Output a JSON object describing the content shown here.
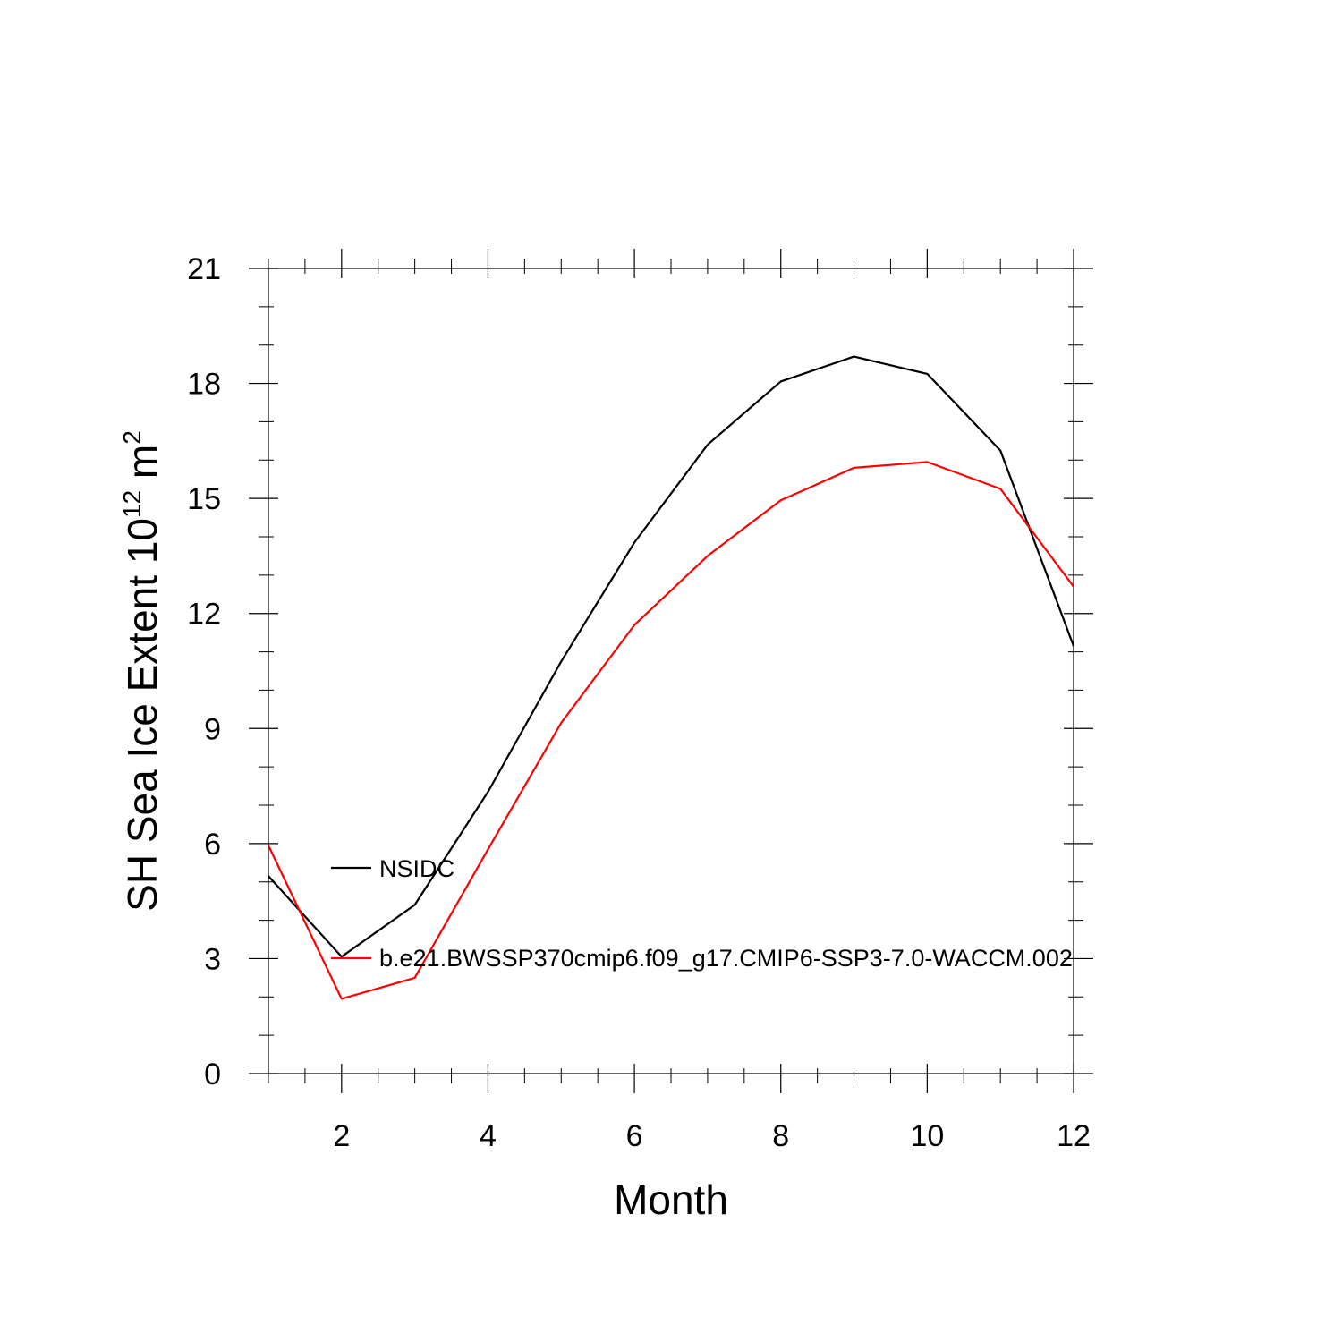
{
  "chart_data": {
    "type": "line",
    "xlabel": "Month",
    "ylabel": "SH Sea Ice Extent 10",
    "ylabel_sup1": "12",
    "ylabel_mid": " m",
    "ylabel_sup2": "2",
    "xlim": [
      1,
      12
    ],
    "ylim": [
      0,
      21
    ],
    "xticks": [
      2,
      4,
      6,
      8,
      10,
      12
    ],
    "yticks": [
      0,
      3,
      6,
      9,
      12,
      15,
      18,
      21
    ],
    "x": [
      1,
      2,
      3,
      4,
      5,
      6,
      7,
      8,
      9,
      10,
      11,
      12
    ],
    "series": [
      {
        "name": "NSIDC",
        "color": "#000000",
        "values": [
          5.15,
          3.05,
          4.4,
          7.35,
          10.75,
          13.85,
          16.4,
          18.05,
          18.7,
          18.25,
          16.25,
          11.15
        ]
      },
      {
        "name": "b.e21.BWSSP370cmip6.f09_g17.CMIP6-SSP3-7.0-WACCM.002",
        "color": "#ff0000",
        "values": [
          5.95,
          1.95,
          2.5,
          5.85,
          9.15,
          11.7,
          13.5,
          14.95,
          15.8,
          15.95,
          15.25,
          12.7
        ]
      }
    ],
    "legend_placement": "lower-left"
  }
}
